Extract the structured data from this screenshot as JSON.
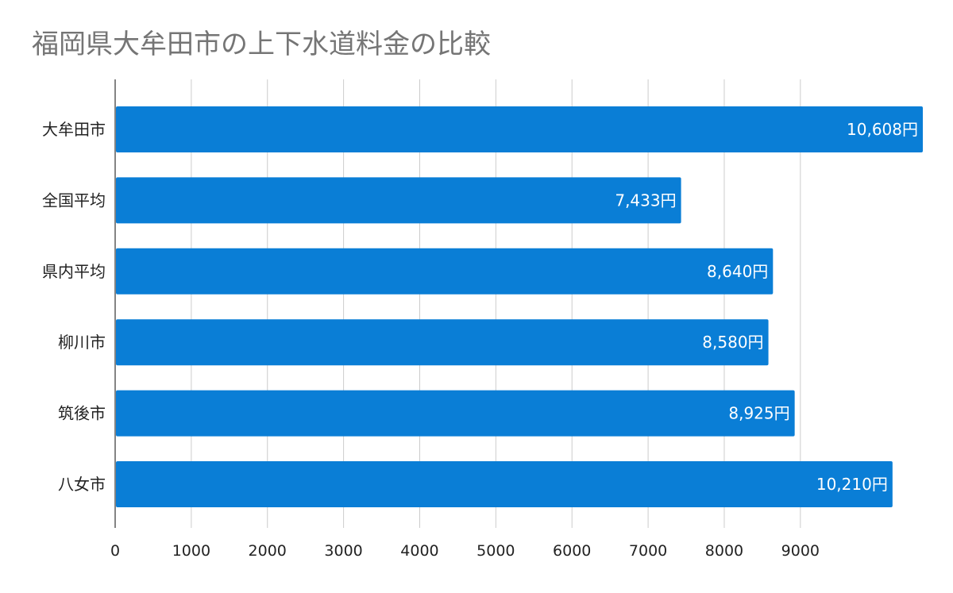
{
  "chart_data": {
    "type": "bar",
    "orientation": "horizontal",
    "title": "福岡県大牟田市の上下水道料金の比較",
    "xlabel": "",
    "ylabel": "",
    "categories": [
      "大牟田市",
      "全国平均",
      "県内平均",
      "柳川市",
      "筑後市",
      "八女市"
    ],
    "values": [
      10608,
      7433,
      8640,
      8580,
      8925,
      10210
    ],
    "data_labels": [
      "10,608円",
      "7,433円",
      "8,640円",
      "8,580円",
      "8,925円",
      "10,210円"
    ],
    "xlim": [
      0,
      10608
    ],
    "xticks": [
      0,
      1000,
      2000,
      3000,
      4000,
      5000,
      6000,
      7000,
      8000,
      9000
    ],
    "grid": true,
    "legend": "none",
    "bar_color": "#0a7ed6",
    "grid_color": "#cccccc",
    "axis_color": "#333333",
    "title_color": "#757575"
  }
}
